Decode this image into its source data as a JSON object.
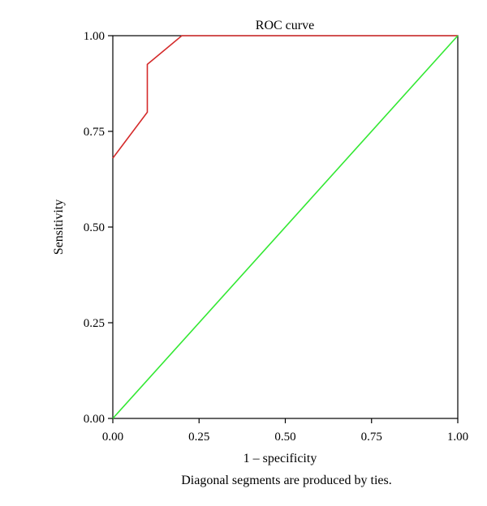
{
  "chart_data": {
    "type": "line",
    "title": "ROC curve",
    "xlabel": "1 – specificity",
    "ylabel": "Sensitivity",
    "note": "Diagonal segments are produced by ties.",
    "xlim": [
      0,
      1
    ],
    "ylim": [
      0,
      1
    ],
    "x_ticks": [
      {
        "value": 0,
        "label": "0.00"
      },
      {
        "value": 0.25,
        "label": "0.25"
      },
      {
        "value": 0.5,
        "label": "0.50"
      },
      {
        "value": 0.75,
        "label": "0.75"
      },
      {
        "value": 1,
        "label": "1.00"
      }
    ],
    "y_ticks": [
      {
        "value": 0,
        "label": "0.00"
      },
      {
        "value": 0.25,
        "label": "0.25"
      },
      {
        "value": 0.5,
        "label": "0.50"
      },
      {
        "value": 0.75,
        "label": "0.75"
      },
      {
        "value": 1,
        "label": "1.00"
      }
    ],
    "grid": false,
    "series": [
      {
        "color": "#d42a2a",
        "x": [
          0,
          0.1,
          0.1,
          0.2,
          1.0
        ],
        "y": [
          0.68,
          0.8,
          0.925,
          1.0,
          1.0
        ]
      },
      {
        "color": "#33e833",
        "x": [
          0,
          1
        ],
        "y": [
          0,
          1
        ]
      }
    ]
  }
}
